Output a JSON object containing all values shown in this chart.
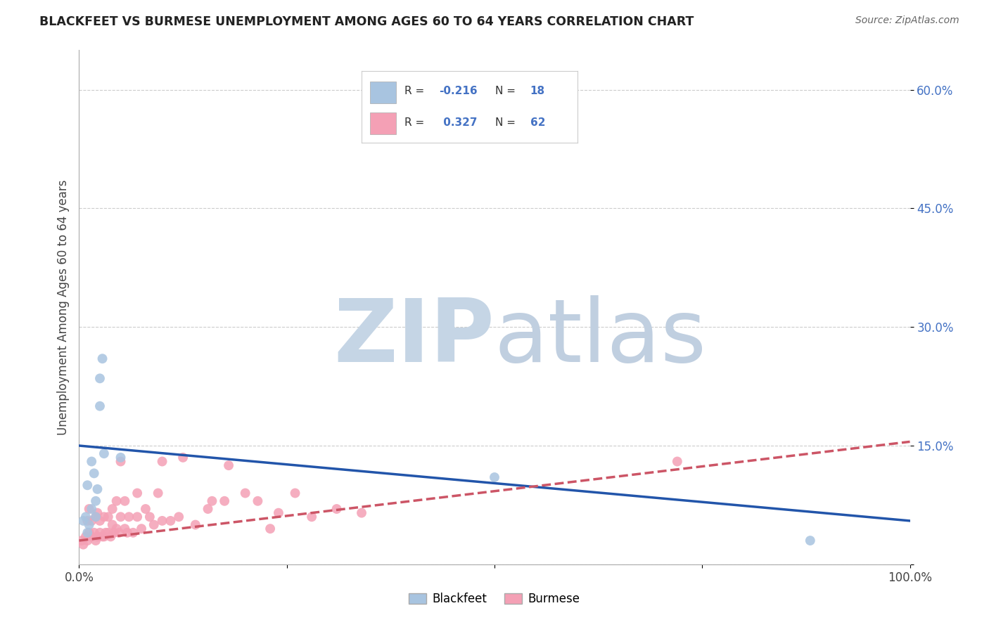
{
  "title": "BLACKFEET VS BURMESE UNEMPLOYMENT AMONG AGES 60 TO 64 YEARS CORRELATION CHART",
  "source": "Source: ZipAtlas.com",
  "ylabel": "Unemployment Among Ages 60 to 64 years",
  "xlim": [
    0,
    1.0
  ],
  "ylim": [
    0,
    0.65
  ],
  "yticks": [
    0.0,
    0.15,
    0.3,
    0.45,
    0.6
  ],
  "ytick_labels": [
    "",
    "15.0%",
    "30.0%",
    "45.0%",
    "60.0%"
  ],
  "xticks": [
    0.0,
    0.25,
    0.5,
    0.75,
    1.0
  ],
  "xtick_labels": [
    "0.0%",
    "",
    "",
    "",
    "100.0%"
  ],
  "blackfeet_R": -0.216,
  "blackfeet_N": 18,
  "burmese_R": 0.327,
  "burmese_N": 62,
  "blackfeet_color": "#a8c4e0",
  "burmese_color": "#f4a0b5",
  "blackfeet_line_color": "#2255aa",
  "burmese_line_color": "#cc5566",
  "background_color": "#ffffff",
  "grid_color": "#cccccc",
  "watermark_zip_color": "#c5d5e5",
  "watermark_atlas_color": "#c0cfe0",
  "legend_r_n_color": "#4472c4",
  "blackfeet_x": [
    0.005,
    0.008,
    0.01,
    0.01,
    0.012,
    0.015,
    0.015,
    0.018,
    0.02,
    0.02,
    0.022,
    0.025,
    0.025,
    0.028,
    0.03,
    0.05,
    0.5,
    0.88
  ],
  "blackfeet_y": [
    0.055,
    0.06,
    0.04,
    0.1,
    0.05,
    0.07,
    0.13,
    0.115,
    0.08,
    0.06,
    0.095,
    0.2,
    0.235,
    0.26,
    0.14,
    0.135,
    0.11,
    0.03
  ],
  "burmese_x": [
    0.003,
    0.005,
    0.008,
    0.01,
    0.01,
    0.012,
    0.012,
    0.015,
    0.015,
    0.018,
    0.02,
    0.02,
    0.022,
    0.022,
    0.025,
    0.025,
    0.028,
    0.03,
    0.03,
    0.032,
    0.035,
    0.035,
    0.038,
    0.04,
    0.04,
    0.042,
    0.045,
    0.045,
    0.048,
    0.05,
    0.05,
    0.055,
    0.055,
    0.058,
    0.06,
    0.065,
    0.07,
    0.07,
    0.075,
    0.08,
    0.085,
    0.09,
    0.095,
    0.1,
    0.1,
    0.11,
    0.12,
    0.125,
    0.14,
    0.155,
    0.16,
    0.175,
    0.18,
    0.2,
    0.215,
    0.23,
    0.24,
    0.26,
    0.28,
    0.31,
    0.34,
    0.72
  ],
  "burmese_y": [
    0.03,
    0.025,
    0.035,
    0.03,
    0.055,
    0.04,
    0.07,
    0.035,
    0.055,
    0.04,
    0.03,
    0.06,
    0.035,
    0.065,
    0.04,
    0.055,
    0.035,
    0.035,
    0.06,
    0.04,
    0.04,
    0.06,
    0.035,
    0.05,
    0.07,
    0.04,
    0.045,
    0.08,
    0.04,
    0.06,
    0.13,
    0.045,
    0.08,
    0.04,
    0.06,
    0.04,
    0.06,
    0.09,
    0.045,
    0.07,
    0.06,
    0.05,
    0.09,
    0.055,
    0.13,
    0.055,
    0.06,
    0.135,
    0.05,
    0.07,
    0.08,
    0.08,
    0.125,
    0.09,
    0.08,
    0.045,
    0.065,
    0.09,
    0.06,
    0.07,
    0.065,
    0.13
  ],
  "blackfeet_line_x": [
    0.0,
    1.0
  ],
  "blackfeet_line_y": [
    0.15,
    0.055
  ],
  "burmese_line_x": [
    0.0,
    1.0
  ],
  "burmese_line_y": [
    0.03,
    0.155
  ]
}
